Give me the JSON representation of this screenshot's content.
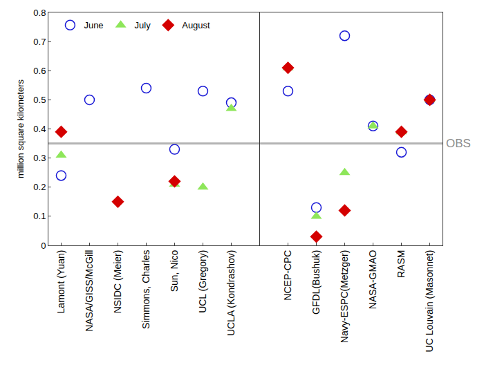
{
  "chart_data": {
    "type": "scatter",
    "y_label": "million square kilometers",
    "categories": [
      "Lamont (Yuan)",
      "NASA/GISS/McGill",
      "NSIDC (Meier)",
      "Simmons, Charles",
      "Sun, Nico",
      "UCL (Gregory)",
      "UCLA (Kondrashov)",
      null,
      "NCEP-CPC",
      "GFDL(Bushuk)",
      "Navy-ESPC(Metzger)",
      "NASA-GMAO",
      "RASM",
      "UC Louvain (Masonnet)"
    ],
    "series": [
      {
        "name": "June",
        "color": "#1a1ad6",
        "marker": "circle-open",
        "values": [
          0.24,
          0.5,
          null,
          0.54,
          0.33,
          0.53,
          0.49,
          null,
          0.53,
          0.13,
          0.72,
          0.41,
          0.32,
          0.5
        ]
      },
      {
        "name": "July",
        "color": "#8ee65a",
        "marker": "triangle-up",
        "values": [
          0.31,
          null,
          null,
          null,
          0.21,
          0.2,
          0.47,
          null,
          0.61,
          0.1,
          0.25,
          0.41,
          0.39,
          0.5
        ]
      },
      {
        "name": "August",
        "color": "#d40000",
        "marker": "diamond",
        "values": [
          0.39,
          null,
          0.15,
          null,
          0.22,
          null,
          null,
          null,
          0.61,
          0.03,
          0.12,
          null,
          0.39,
          0.5
        ]
      }
    ],
    "annotations": [
      {
        "text": "OBS",
        "y": 0.35
      }
    ],
    "ylim": [
      0,
      0.8
    ],
    "yticks": [
      0,
      0.1,
      0.2,
      0.3,
      0.4,
      0.5,
      0.6,
      0.7,
      0.8
    ],
    "grid": false,
    "legend": "top-left"
  }
}
